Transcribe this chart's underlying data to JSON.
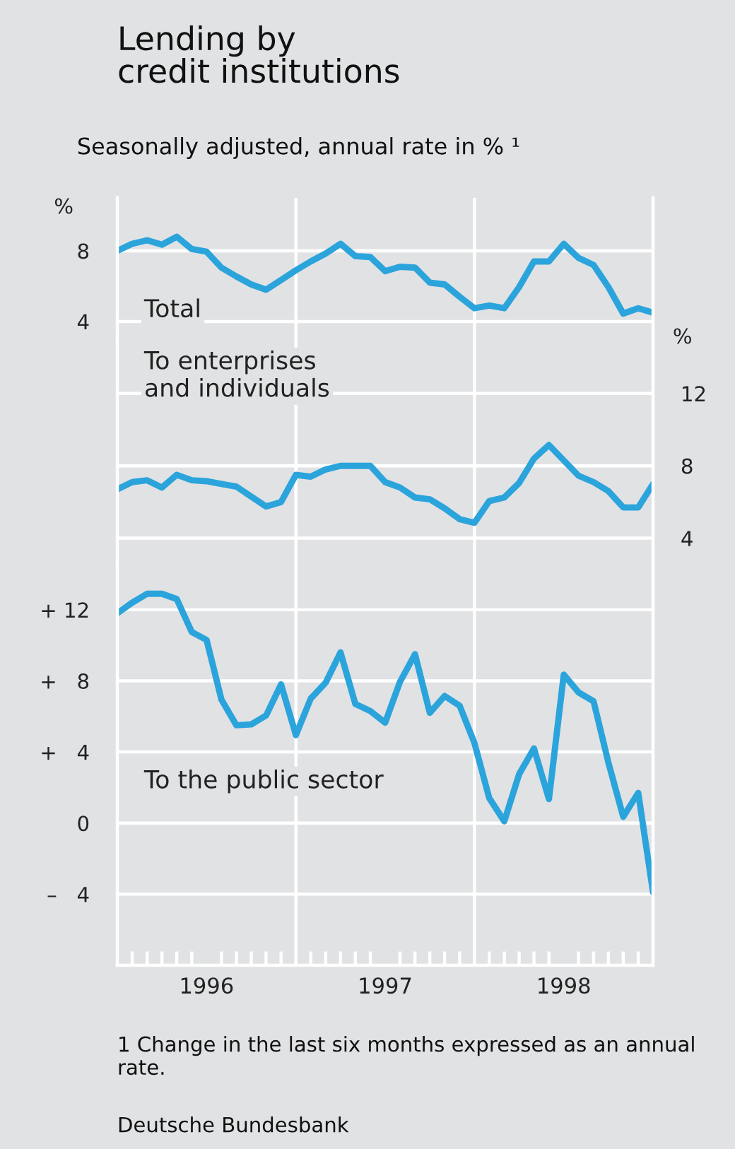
{
  "chart_data": [
    {
      "type": "line",
      "title": "Lending by\ncredit institutions",
      "subtitle": "Seasonally adjusted, annual rate in % ¹",
      "ylabel": "%",
      "x": [
        1996,
        1996.083,
        1996.167,
        1996.25,
        1996.333,
        1996.417,
        1996.5,
        1996.583,
        1996.667,
        1996.75,
        1996.833,
        1996.917,
        1997,
        1997.083,
        1997.167,
        1997.25,
        1997.333,
        1997.417,
        1997.5,
        1997.583,
        1997.667,
        1997.75,
        1997.833,
        1997.917,
        1998,
        1998.083,
        1998.167,
        1998.25,
        1998.333,
        1998.417,
        1998.5,
        1998.583,
        1998.667,
        1998.75,
        1998.833,
        1998.917,
        1999
      ],
      "series": [
        {
          "name": "Total",
          "color": "#2ba4dc",
          "values": [
            8.0,
            8.4,
            8.6,
            8.35,
            8.8,
            8.1,
            7.95,
            7.05,
            6.55,
            6.1,
            5.8,
            6.35,
            6.9,
            7.4,
            7.85,
            8.4,
            7.7,
            7.65,
            6.85,
            7.1,
            7.05,
            6.2,
            6.1,
            5.4,
            4.75,
            4.9,
            4.75,
            5.95,
            7.4,
            7.4,
            8.4,
            7.6,
            7.2,
            5.95,
            4.45,
            4.75,
            4.5
          ]
        }
      ],
      "xlim": [
        1996,
        1999
      ],
      "ylim": [
        3,
        11
      ],
      "yticks": [
        4,
        8
      ],
      "grid": "y",
      "tick_labels": "y",
      "ref_lines": [
        {
          "axis": "x",
          "value": 1997,
          "color": "#ffffff"
        },
        {
          "axis": "x",
          "value": 1998,
          "color": "#ffffff"
        }
      ]
    },
    {
      "type": "line",
      "y2label": "%",
      "x": [
        1996,
        1996.083,
        1996.167,
        1996.25,
        1996.333,
        1996.417,
        1996.5,
        1996.583,
        1996.667,
        1996.75,
        1996.833,
        1996.917,
        1997,
        1997.083,
        1997.167,
        1997.25,
        1997.333,
        1997.417,
        1997.5,
        1997.583,
        1997.667,
        1997.75,
        1997.833,
        1997.917,
        1998,
        1998.083,
        1998.167,
        1998.25,
        1998.333,
        1998.417,
        1998.5,
        1998.583,
        1998.667,
        1998.75,
        1998.833,
        1998.917,
        1999
      ],
      "series": [
        {
          "name": "To enterprises\nand individuals",
          "color": "#2ba4dc",
          "axis": "y2",
          "values": [
            6.7,
            7.1,
            7.2,
            6.8,
            7.5,
            7.2,
            7.15,
            7.0,
            6.85,
            6.3,
            5.75,
            6.0,
            7.5,
            7.4,
            7.8,
            8.0,
            8.0,
            8.0,
            7.1,
            6.8,
            6.25,
            6.15,
            5.65,
            5.05,
            4.85,
            6.05,
            6.25,
            7.05,
            8.4,
            9.15,
            8.3,
            7.45,
            7.1,
            6.6,
            5.7,
            5.7,
            7.0
          ]
        }
      ],
      "xlim": [
        1996,
        1999
      ],
      "y2lim": [
        2.5,
        15
      ],
      "y2ticks": [
        4,
        8,
        12
      ],
      "grid": "y",
      "tick_labels": "y",
      "ref_lines": [
        {
          "axis": "x",
          "value": 1997,
          "color": "#ffffff"
        },
        {
          "axis": "x",
          "value": 1998,
          "color": "#ffffff"
        }
      ]
    },
    {
      "type": "line",
      "x": [
        1996,
        1996.083,
        1996.167,
        1996.25,
        1996.333,
        1996.417,
        1996.5,
        1996.583,
        1996.667,
        1996.75,
        1996.833,
        1996.917,
        1997,
        1997.083,
        1997.167,
        1997.25,
        1997.333,
        1997.417,
        1997.5,
        1997.583,
        1997.667,
        1997.75,
        1997.833,
        1997.917,
        1998,
        1998.083,
        1998.167,
        1998.25,
        1998.333,
        1998.417,
        1998.5,
        1998.583,
        1998.667,
        1998.75,
        1998.833,
        1998.917,
        1999
      ],
      "series": [
        {
          "name": "To the public sector",
          "color": "#2ba4dc",
          "values": [
            11.8,
            12.4,
            12.9,
            12.9,
            12.6,
            10.75,
            10.3,
            6.95,
            5.5,
            5.55,
            6.05,
            7.8,
            4.95,
            7.0,
            7.9,
            9.6,
            6.7,
            6.3,
            5.65,
            7.95,
            9.5,
            6.2,
            7.15,
            6.6,
            4.5,
            1.4,
            0.1,
            2.75,
            4.2,
            1.35,
            8.35,
            7.35,
            6.85,
            3.4,
            0.35,
            1.7,
            -3.9
          ]
        }
      ],
      "xlim": [
        1996,
        1999
      ],
      "ylim": [
        -8,
        14.5
      ],
      "yticks": [
        {
          "value": 12,
          "label": "+ 12"
        },
        {
          "value": 8,
          "label": "+   8"
        },
        {
          "value": 4,
          "label": "+   4"
        },
        0,
        {
          "value": -4,
          "label": "–   4"
        }
      ],
      "xticks": [
        {
          "value": 1996.5,
          "label": "1996"
        },
        {
          "value": 1997.5,
          "label": "1997"
        },
        {
          "value": 1998.5,
          "label": "1998"
        },
        {
          "value": 1996.083,
          "label": null
        },
        {
          "value": 1996.167,
          "label": null
        },
        {
          "value": 1996.25,
          "label": null
        },
        {
          "value": 1996.333,
          "label": null
        },
        {
          "value": 1996.417,
          "label": null
        },
        {
          "value": 1996.583,
          "label": null
        },
        {
          "value": 1996.667,
          "label": null
        },
        {
          "value": 1996.75,
          "label": null
        },
        {
          "value": 1996.833,
          "label": null
        },
        {
          "value": 1996.917,
          "label": null
        },
        {
          "value": 1997.083,
          "label": null
        },
        {
          "value": 1997.167,
          "label": null
        },
        {
          "value": 1997.25,
          "label": null
        },
        {
          "value": 1997.333,
          "label": null
        },
        {
          "value": 1997.417,
          "label": null
        },
        {
          "value": 1997.583,
          "label": null
        },
        {
          "value": 1997.667,
          "label": null
        },
        {
          "value": 1997.75,
          "label": null
        },
        {
          "value": 1997.833,
          "label": null
        },
        {
          "value": 1997.917,
          "label": null
        },
        {
          "value": 1998.083,
          "label": null
        },
        {
          "value": 1998.167,
          "label": null
        },
        {
          "value": 1998.25,
          "label": null
        },
        {
          "value": 1998.333,
          "label": null
        },
        {
          "value": 1998.417,
          "label": null
        },
        {
          "value": 1998.583,
          "label": null
        },
        {
          "value": 1998.667,
          "label": null
        },
        {
          "value": 1998.75,
          "label": null
        },
        {
          "value": 1998.833,
          "label": null
        },
        {
          "value": 1998.917,
          "label": null
        }
      ],
      "grid": "y",
      "ref_lines": [
        {
          "axis": "x",
          "value": 1997,
          "color": "#ffffff"
        },
        {
          "axis": "x",
          "value": 1998,
          "color": "#ffffff"
        }
      ],
      "annotations": [
        "1 Change in the last six months expressed as an annual rate.",
        "Deutsche Bundesbank"
      ]
    }
  ]
}
